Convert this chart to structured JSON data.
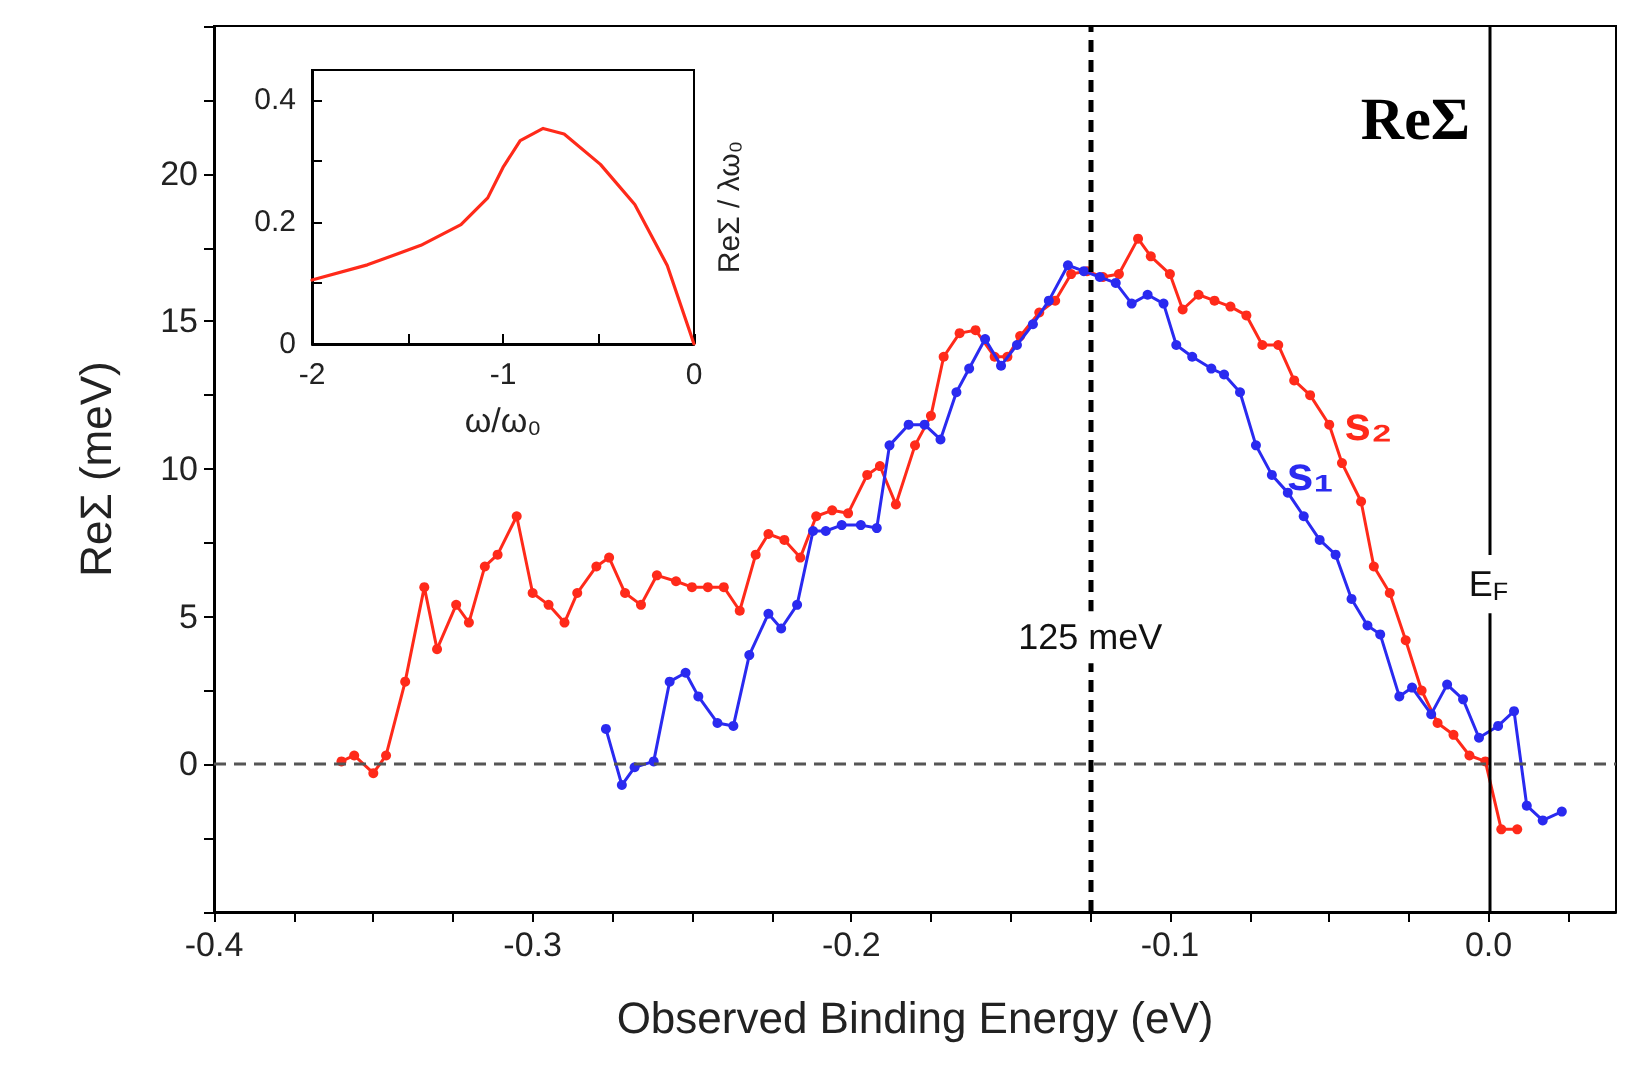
{
  "chart_data": [
    {
      "type": "line",
      "xlabel": "Observed Binding Energy (eV)",
      "ylabel": "ReΣ (meV)",
      "annotations": [
        "ReΣ"
      ],
      "marker": "circle",
      "line_style": "solid",
      "grid": false,
      "legend": false,
      "xlim": [
        -0.4,
        0.04
      ],
      "xticks": [
        -0.4,
        {
          "value": -0.375,
          "label": null
        },
        {
          "value": -0.35,
          "label": null
        },
        {
          "value": -0.325,
          "label": null
        },
        -0.3,
        {
          "value": -0.275,
          "label": null
        },
        {
          "value": -0.25,
          "label": null
        },
        {
          "value": -0.225,
          "label": null
        },
        -0.2,
        {
          "value": -0.175,
          "label": null
        },
        {
          "value": -0.15,
          "label": null
        },
        {
          "value": -0.125,
          "label": null
        },
        -0.1,
        {
          "value": -0.075,
          "label": null
        },
        {
          "value": -0.05,
          "label": null
        },
        {
          "value": -0.025,
          "label": null
        },
        {
          "value": 0,
          "label": "0.0"
        },
        {
          "value": 0.025,
          "label": null
        }
      ],
      "ylim": [
        -5,
        25
      ],
      "yticks": [
        {
          "value": -5,
          "label": null
        },
        {
          "value": -2.5,
          "label": null
        },
        0,
        {
          "value": 2.5,
          "label": null
        },
        5,
        {
          "value": 7.5,
          "label": null
        },
        10,
        {
          "value": 12.5,
          "label": null
        },
        15,
        {
          "value": 17.5,
          "label": null
        },
        20,
        {
          "value": 22.5,
          "label": null
        },
        {
          "value": 25,
          "label": null
        }
      ],
      "ref_lines": [
        {
          "axis": "y",
          "value": 0,
          "label": null,
          "color": "#555555",
          "line_style": "dashed"
        },
        {
          "axis": "x",
          "value": -0.125,
          "label": "125 meV",
          "color": "#000000",
          "line_style": "dashed"
        },
        {
          "axis": "x",
          "value": 0,
          "label": "E$_{F}$",
          "color": "#000000",
          "line_style": "solid"
        }
      ],
      "series": [
        {
          "name": "s₂",
          "color": "#ff2a1a",
          "x": [
            -0.36,
            -0.356,
            -0.35,
            -0.346,
            -0.34,
            -0.334,
            -0.33,
            -0.324,
            -0.32,
            -0.315,
            -0.311,
            -0.305,
            -0.3,
            -0.295,
            -0.29,
            -0.286,
            -0.28,
            -0.276,
            -0.271,
            -0.266,
            -0.261,
            -0.255,
            -0.25,
            -0.245,
            -0.24,
            -0.235,
            -0.23,
            -0.226,
            -0.221,
            -0.216,
            -0.211,
            -0.206,
            -0.201,
            -0.195,
            -0.191,
            -0.186,
            -0.18,
            -0.175,
            -0.171,
            -0.166,
            -0.161,
            -0.155,
            -0.151,
            -0.147,
            -0.141,
            -0.136,
            -0.131,
            -0.126,
            -0.121,
            -0.116,
            -0.11,
            -0.106,
            -0.1,
            -0.096,
            -0.091,
            -0.086,
            -0.081,
            -0.076,
            -0.071,
            -0.066,
            -0.061,
            -0.056,
            -0.05,
            -0.046,
            -0.04,
            -0.036,
            -0.031,
            -0.026,
            -0.021,
            -0.016,
            -0.011,
            -0.006,
            -0.001,
            0.004,
            0.009
          ],
          "values": [
            0.1,
            0.3,
            -0.3,
            0.3,
            2.8,
            6.0,
            3.9,
            5.4,
            4.8,
            6.7,
            7.1,
            8.4,
            5.8,
            5.4,
            4.8,
            5.8,
            6.7,
            7.0,
            5.8,
            5.4,
            6.4,
            6.2,
            6.0,
            6.0,
            6.0,
            5.2,
            7.1,
            7.8,
            7.6,
            7.0,
            8.4,
            8.6,
            8.5,
            9.8,
            10.1,
            8.8,
            10.8,
            11.8,
            13.8,
            14.6,
            14.7,
            13.8,
            13.8,
            14.5,
            15.3,
            15.7,
            16.6,
            16.7,
            16.5,
            16.6,
            17.8,
            17.2,
            16.6,
            15.4,
            15.9,
            15.7,
            15.5,
            15.2,
            14.2,
            14.2,
            13.0,
            12.5,
            11.5,
            10.2,
            8.9,
            6.7,
            5.8,
            4.2,
            2.5,
            1.4,
            1.0,
            0.3,
            0.1,
            -2.2,
            -2.2
          ]
        },
        {
          "name": "s₁",
          "color": "#2a2af0",
          "x": [
            -0.277,
            -0.272,
            -0.268,
            -0.262,
            -0.257,
            -0.252,
            -0.248,
            -0.242,
            -0.237,
            -0.232,
            -0.226,
            -0.222,
            -0.217,
            -0.212,
            -0.208,
            -0.203,
            -0.197,
            -0.192,
            -0.188,
            -0.182,
            -0.177,
            -0.172,
            -0.167,
            -0.163,
            -0.158,
            -0.153,
            -0.148,
            -0.143,
            -0.138,
            -0.132,
            -0.127,
            -0.122,
            -0.117,
            -0.112,
            -0.107,
            -0.102,
            -0.098,
            -0.093,
            -0.087,
            -0.083,
            -0.078,
            -0.073,
            -0.068,
            -0.063,
            -0.058,
            -0.053,
            -0.048,
            -0.043,
            -0.038,
            -0.034,
            -0.028,
            -0.024,
            -0.018,
            -0.013,
            -0.008,
            -0.003,
            0.003,
            0.008,
            0.012,
            0.017,
            0.023
          ],
          "values": [
            1.2,
            -0.7,
            -0.1,
            0.1,
            2.8,
            3.1,
            2.3,
            1.4,
            1.3,
            3.7,
            5.1,
            4.6,
            5.4,
            7.9,
            7.9,
            8.1,
            8.1,
            8.0,
            10.8,
            11.5,
            11.5,
            11.0,
            12.6,
            13.4,
            14.4,
            13.5,
            14.2,
            14.9,
            15.7,
            16.9,
            16.7,
            16.5,
            16.3,
            15.6,
            15.9,
            15.6,
            14.2,
            13.8,
            13.4,
            13.2,
            12.6,
            10.8,
            9.8,
            9.2,
            8.4,
            7.6,
            7.1,
            5.6,
            4.7,
            4.4,
            2.3,
            2.6,
            1.7,
            2.7,
            2.2,
            0.9,
            1.3,
            1.8,
            -1.4,
            -1.9,
            -1.6
          ]
        }
      ]
    },
    {
      "type": "line",
      "xlabel": "ω/ω₀",
      "ylabel": "ReΣ / λω₀",
      "marker": "none",
      "grid": false,
      "legend": false,
      "xlim": [
        -2,
        0
      ],
      "xticks": [
        -2,
        {
          "value": -1.5,
          "label": null
        },
        -1,
        {
          "value": -0.5,
          "label": null
        },
        0
      ],
      "ylim": [
        0,
        0.45
      ],
      "yticks": [
        0,
        {
          "value": 0.1,
          "label": null
        },
        0.2,
        {
          "value": 0.3,
          "label": null
        },
        0.4
      ],
      "series": [
        {
          "color": "#ff2a1a",
          "x": [
            -2,
            -1.71,
            -1.43,
            -1.22,
            -1.08,
            -1.0,
            -0.91,
            -0.79,
            -0.68,
            -0.49,
            -0.31,
            -0.14,
            0
          ],
          "values": [
            0.105,
            0.13,
            0.162,
            0.196,
            0.24,
            0.29,
            0.334,
            0.354,
            0.345,
            0.295,
            0.229,
            0.129,
            0
          ]
        }
      ]
    }
  ]
}
